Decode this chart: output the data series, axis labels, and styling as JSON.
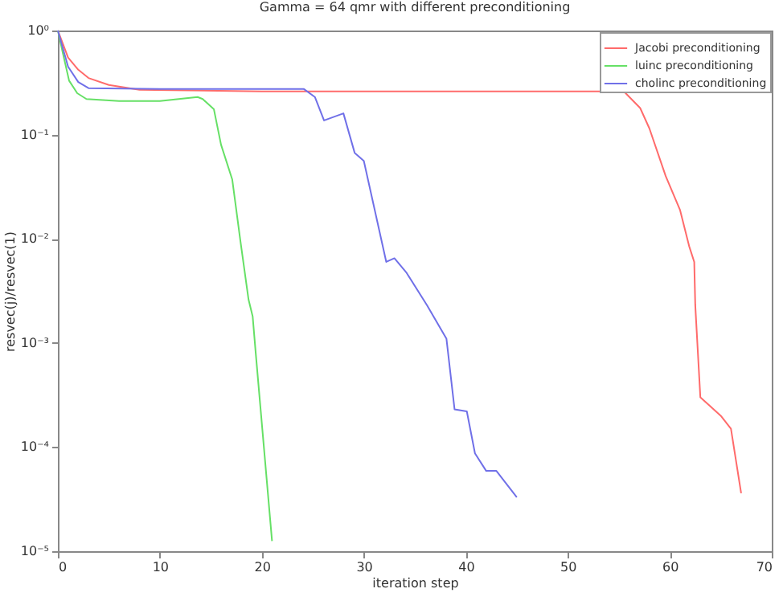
{
  "chart_data": {
    "type": "line",
    "title": "Gamma = 64  qmr with different preconditioning",
    "xlabel": "iteration step",
    "ylabel": "resvec(j)/resvec(1)",
    "log": "y",
    "xlim": [
      0,
      70
    ],
    "xticks": [
      0,
      10,
      20,
      30,
      40,
      50,
      60,
      70
    ],
    "ylim": [
      1e-05,
      1
    ],
    "yticks": [
      {
        "value": 1e-05,
        "label": "10⁻⁵"
      },
      {
        "value": 0.0001,
        "label": "10⁻⁴"
      },
      {
        "value": 0.001,
        "label": "10⁻³"
      },
      {
        "value": 0.01,
        "label": "10⁻²"
      },
      {
        "value": 0.1,
        "label": "10⁻¹"
      },
      {
        "value": 1,
        "label": "10⁰"
      }
    ],
    "grid": false,
    "legend": "top right",
    "line_style": "solid",
    "marker": "none",
    "series": [
      {
        "name": "Jacobi preconditioning",
        "color": "#ff6b6b",
        "x": [
          0,
          1,
          2,
          3,
          5,
          8,
          20,
          40,
          55.5,
          57.1,
          58,
          59.6,
          61,
          61.9,
          62.4,
          62.5,
          63,
          65,
          66,
          67
        ],
        "values": [
          1,
          0.55,
          0.42,
          0.35,
          0.3,
          0.27,
          0.26,
          0.26,
          0.26,
          0.18,
          0.115,
          0.04,
          0.019,
          0.0085,
          0.006,
          0.0023,
          0.0003,
          0.0002,
          0.00015,
          3.6e-05
        ]
      },
      {
        "name": "luinc preconditioning",
        "color": "#66e066",
        "x": [
          0,
          0.5,
          1.1,
          1.9,
          2.8,
          6,
          10,
          13.7,
          14.2,
          15.3,
          16,
          17.1,
          17.9,
          18.7,
          19.1,
          19.4,
          21
        ],
        "values": [
          1,
          0.6,
          0.33,
          0.25,
          0.22,
          0.21,
          0.21,
          0.23,
          0.22,
          0.175,
          0.08,
          0.037,
          0.0095,
          0.0026,
          0.0018,
          0.0008,
          1.25e-05
        ]
      },
      {
        "name": "cholinc preconditioning",
        "color": "#7070e8",
        "x": [
          0,
          1,
          2,
          3,
          10,
          24.1,
          25.2,
          26.1,
          28,
          29.1,
          30,
          32.2,
          33,
          34.2,
          36.2,
          38.1,
          38.9,
          40.1,
          40.9,
          42,
          43,
          45
        ],
        "values": [
          1,
          0.45,
          0.32,
          0.28,
          0.275,
          0.275,
          0.23,
          0.137,
          0.16,
          0.067,
          0.056,
          0.006,
          0.0065,
          0.0047,
          0.0023,
          0.0011,
          0.00023,
          0.00022,
          8.7e-05,
          5.9e-05,
          5.9e-05,
          3.3e-05
        ]
      }
    ]
  }
}
